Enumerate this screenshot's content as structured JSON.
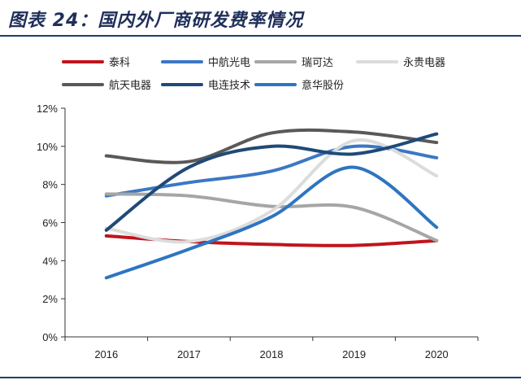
{
  "figure_title": "图表 24：国内外厂商研发费率情况",
  "chart_data": {
    "type": "line",
    "x": [
      "2016",
      "2017",
      "2018",
      "2019",
      "2020"
    ],
    "ylim": [
      0,
      12
    ],
    "yticks": [
      "0%",
      "2%",
      "4%",
      "6%",
      "8%",
      "10%",
      "12%"
    ],
    "y_tick_values": [
      0,
      2,
      4,
      6,
      8,
      10,
      12
    ],
    "grid": false,
    "smooth": true,
    "legend_position": "top",
    "series": [
      {
        "name": "泰科",
        "color": "#c0141c",
        "values": [
          5.3,
          5.0,
          4.85,
          4.8,
          5.05
        ]
      },
      {
        "name": "中航光电",
        "color": "#3b78c4",
        "values": [
          7.4,
          8.1,
          8.7,
          10.0,
          9.4
        ]
      },
      {
        "name": "瑞可达",
        "color": "#a6a6a6",
        "values": [
          7.5,
          7.4,
          6.85,
          6.8,
          5.05
        ]
      },
      {
        "name": "永贵电器",
        "color": "#dcdcdc",
        "values": [
          5.7,
          5.0,
          6.6,
          10.3,
          8.45
        ]
      },
      {
        "name": "航天电器",
        "color": "#595959",
        "values": [
          9.5,
          9.2,
          10.7,
          10.75,
          10.2
        ]
      },
      {
        "name": "电连技术",
        "color": "#1f4a78",
        "values": [
          5.6,
          8.9,
          10.0,
          9.6,
          10.65
        ]
      },
      {
        "name": "意华股份",
        "color": "#2e75c0",
        "values": [
          3.1,
          4.6,
          6.3,
          8.9,
          5.75
        ]
      }
    ]
  }
}
